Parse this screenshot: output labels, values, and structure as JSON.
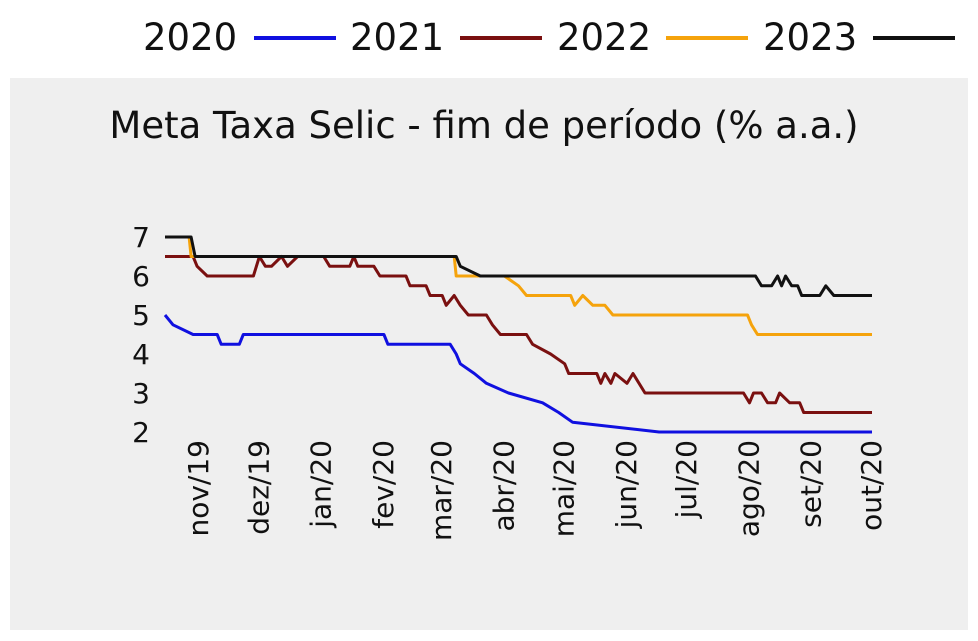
{
  "chart_data": {
    "type": "line",
    "title": "Meta Taxa Selic - fim de período (% a.a.)",
    "xlabel": "",
    "ylabel": "",
    "ylim": [
      2,
      7
    ],
    "xlim": [
      "2019-10-15",
      "2020-10-01"
    ],
    "y_ticks": [
      2,
      3,
      4,
      5,
      6,
      7
    ],
    "x_ticks": [
      {
        "date": "2019-11-01",
        "label": "nov/19"
      },
      {
        "date": "2019-12-01",
        "label": "dez/19"
      },
      {
        "date": "2020-01-01",
        "label": "jan/20"
      },
      {
        "date": "2020-02-01",
        "label": "fev/20"
      },
      {
        "date": "2020-03-01",
        "label": "mar/20"
      },
      {
        "date": "2020-04-01",
        "label": "abr/20"
      },
      {
        "date": "2020-05-01",
        "label": "mai/20"
      },
      {
        "date": "2020-06-01",
        "label": "jun/20"
      },
      {
        "date": "2020-07-01",
        "label": "jul/20"
      },
      {
        "date": "2020-08-01",
        "label": "ago/20"
      },
      {
        "date": "2020-09-01",
        "label": "set/20"
      },
      {
        "date": "2020-10-01",
        "label": "out/20"
      }
    ],
    "legend_position": "top",
    "grid": false,
    "series": [
      {
        "name": "2020",
        "color": "#1010e0",
        "points": [
          [
            "2019-10-15",
            5.0
          ],
          [
            "2019-10-19",
            4.75
          ],
          [
            "2019-10-29",
            4.5
          ],
          [
            "2019-11-10",
            4.5
          ],
          [
            "2019-11-12",
            4.25
          ],
          [
            "2019-11-21",
            4.25
          ],
          [
            "2019-11-23",
            4.5
          ],
          [
            "2020-02-01",
            4.5
          ],
          [
            "2020-02-03",
            4.25
          ],
          [
            "2020-03-05",
            4.25
          ],
          [
            "2020-03-08",
            4.0
          ],
          [
            "2020-03-10",
            3.75
          ],
          [
            "2020-03-17",
            3.5
          ],
          [
            "2020-03-23",
            3.25
          ],
          [
            "2020-04-03",
            3.0
          ],
          [
            "2020-04-20",
            2.75
          ],
          [
            "2020-04-28",
            2.5
          ],
          [
            "2020-05-05",
            2.25
          ],
          [
            "2020-06-17",
            2.0
          ],
          [
            "2020-10-01",
            2.0
          ]
        ]
      },
      {
        "name": "2021",
        "color": "#7a1010",
        "points": [
          [
            "2019-10-15",
            6.5
          ],
          [
            "2019-10-29",
            6.5
          ],
          [
            "2019-10-31",
            6.25
          ],
          [
            "2019-11-05",
            6.0
          ],
          [
            "2019-11-15",
            6.0
          ],
          [
            "2019-11-28",
            6.0
          ],
          [
            "2019-12-01",
            6.5
          ],
          [
            "2019-12-04",
            6.25
          ],
          [
            "2019-12-07",
            6.25
          ],
          [
            "2019-12-12",
            6.5
          ],
          [
            "2019-12-15",
            6.25
          ],
          [
            "2019-12-20",
            6.5
          ],
          [
            "2019-12-24",
            6.5
          ],
          [
            "2020-01-02",
            6.5
          ],
          [
            "2020-01-05",
            6.25
          ],
          [
            "2020-01-15",
            6.25
          ],
          [
            "2020-01-17",
            6.5
          ],
          [
            "2020-01-19",
            6.25
          ],
          [
            "2020-01-27",
            6.25
          ],
          [
            "2020-01-30",
            6.0
          ],
          [
            "2020-02-12",
            6.0
          ],
          [
            "2020-02-14",
            5.75
          ],
          [
            "2020-02-22",
            5.75
          ],
          [
            "2020-02-24",
            5.5
          ],
          [
            "2020-03-01",
            5.5
          ],
          [
            "2020-03-03",
            5.25
          ],
          [
            "2020-03-07",
            5.5
          ],
          [
            "2020-03-10",
            5.25
          ],
          [
            "2020-03-14",
            5.0
          ],
          [
            "2020-03-23",
            5.0
          ],
          [
            "2020-03-26",
            4.75
          ],
          [
            "2020-03-30",
            4.5
          ],
          [
            "2020-04-12",
            4.5
          ],
          [
            "2020-04-15",
            4.25
          ],
          [
            "2020-04-24",
            4.0
          ],
          [
            "2020-05-01",
            3.75
          ],
          [
            "2020-05-03",
            3.5
          ],
          [
            "2020-05-17",
            3.5
          ],
          [
            "2020-05-19",
            3.25
          ],
          [
            "2020-05-21",
            3.5
          ],
          [
            "2020-05-24",
            3.25
          ],
          [
            "2020-05-26",
            3.5
          ],
          [
            "2020-06-01",
            3.25
          ],
          [
            "2020-06-04",
            3.5
          ],
          [
            "2020-06-10",
            3.0
          ],
          [
            "2020-07-29",
            3.0
          ],
          [
            "2020-08-01",
            2.75
          ],
          [
            "2020-08-03",
            3.0
          ],
          [
            "2020-08-07",
            3.0
          ],
          [
            "2020-08-10",
            2.75
          ],
          [
            "2020-08-14",
            2.75
          ],
          [
            "2020-08-16",
            3.0
          ],
          [
            "2020-08-21",
            2.75
          ],
          [
            "2020-08-26",
            2.75
          ],
          [
            "2020-08-28",
            2.5
          ],
          [
            "2020-10-01",
            2.5
          ]
        ]
      },
      {
        "name": "2022",
        "color": "#f5a30c",
        "points": [
          [
            "2019-10-15",
            7.0
          ],
          [
            "2019-10-27",
            7.0
          ],
          [
            "2019-10-28",
            6.5
          ],
          [
            "2020-03-07",
            6.5
          ],
          [
            "2020-03-08",
            6.0
          ],
          [
            "2020-04-01",
            6.0
          ],
          [
            "2020-04-08",
            5.75
          ],
          [
            "2020-04-12",
            5.5
          ],
          [
            "2020-05-04",
            5.5
          ],
          [
            "2020-05-06",
            5.25
          ],
          [
            "2020-05-10",
            5.5
          ],
          [
            "2020-05-15",
            5.25
          ],
          [
            "2020-05-21",
            5.25
          ],
          [
            "2020-05-25",
            5.0
          ],
          [
            "2020-07-31",
            5.0
          ],
          [
            "2020-08-02",
            4.75
          ],
          [
            "2020-08-05",
            4.5
          ],
          [
            "2020-10-01",
            4.5
          ]
        ]
      },
      {
        "name": "2023",
        "color": "#111111",
        "points": [
          [
            "2019-10-15",
            7.0
          ],
          [
            "2019-10-28",
            7.0
          ],
          [
            "2019-10-30",
            6.5
          ],
          [
            "2020-03-08",
            6.5
          ],
          [
            "2020-03-10",
            6.25
          ],
          [
            "2020-03-20",
            6.0
          ],
          [
            "2020-08-04",
            6.0
          ],
          [
            "2020-08-07",
            5.75
          ],
          [
            "2020-08-12",
            5.75
          ],
          [
            "2020-08-15",
            6.0
          ],
          [
            "2020-08-17",
            5.75
          ],
          [
            "2020-08-19",
            6.0
          ],
          [
            "2020-08-22",
            5.75
          ],
          [
            "2020-08-25",
            5.75
          ],
          [
            "2020-08-27",
            5.5
          ],
          [
            "2020-09-05",
            5.5
          ],
          [
            "2020-09-08",
            5.75
          ],
          [
            "2020-09-12",
            5.5
          ],
          [
            "2020-10-01",
            5.5
          ]
        ]
      }
    ]
  }
}
